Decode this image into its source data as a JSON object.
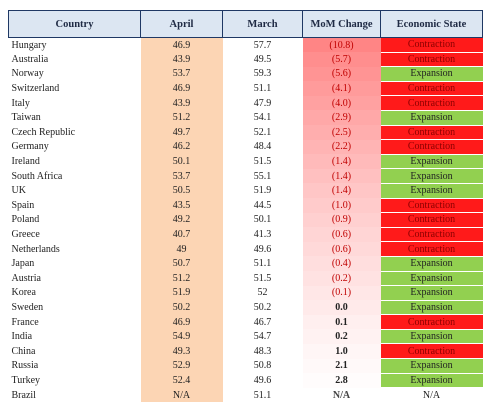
{
  "table": {
    "header": [
      "Country",
      "April",
      "March",
      "MoM Change",
      "Economic State"
    ],
    "rows": [
      [
        "Hungary",
        "46.9",
        "57.7",
        "(10.8)",
        "Contraction"
      ],
      [
        "Australia",
        "43.9",
        "49.5",
        "(5.7)",
        "Contraction"
      ],
      [
        "Norway",
        "53.7",
        "59.3",
        "(5.6)",
        "Expansion"
      ],
      [
        "Switzerland",
        "46.9",
        "51.1",
        "(4.1)",
        "Contraction"
      ],
      [
        "Italy",
        "43.9",
        "47.9",
        "(4.0)",
        "Contraction"
      ],
      [
        "Taiwan",
        "51.2",
        "54.1",
        "(2.9)",
        "Expansion"
      ],
      [
        "Czech Republic",
        "49.7",
        "52.1",
        "(2.5)",
        "Contraction"
      ],
      [
        "Germany",
        "46.2",
        "48.4",
        "(2.2)",
        "Contraction"
      ],
      [
        "Ireland",
        "50.1",
        "51.5",
        "(1.4)",
        "Expansion"
      ],
      [
        "South Africa",
        "53.7",
        "55.1",
        "(1.4)",
        "Expansion"
      ],
      [
        "UK",
        "50.5",
        "51.9",
        "(1.4)",
        "Expansion"
      ],
      [
        "Spain",
        "43.5",
        "44.5",
        "(1.0)",
        "Contraction"
      ],
      [
        "Poland",
        "49.2",
        "50.1",
        "(0.9)",
        "Contraction"
      ],
      [
        "Greece",
        "40.7",
        "41.3",
        "(0.6)",
        "Contraction"
      ],
      [
        "Netherlands",
        "49",
        "49.6",
        "(0.6)",
        "Contraction"
      ],
      [
        "Japan",
        "50.7",
        "51.1",
        "(0.4)",
        "Expansion"
      ],
      [
        "Austria",
        "51.2",
        "51.5",
        "(0.2)",
        "Expansion"
      ],
      [
        "Korea",
        "51.9",
        "52",
        "(0.1)",
        "Expansion"
      ],
      [
        "Sweden",
        "50.2",
        "50.2",
        "0.0",
        "Expansion"
      ],
      [
        "France",
        "46.9",
        "46.7",
        "0.1",
        "Contraction"
      ],
      [
        "India",
        "54.9",
        "54.7",
        "0.2",
        "Expansion"
      ],
      [
        "China",
        "49.3",
        "48.3",
        "1.0",
        "Contraction"
      ],
      [
        "Russia",
        "52.9",
        "50.8",
        "2.1",
        "Expansion"
      ],
      [
        "Turkey",
        "52.4",
        "49.6",
        "2.8",
        "Expansion"
      ],
      [
        "Brazil",
        "N/A",
        "51.1",
        "N/A",
        "N/A"
      ]
    ]
  },
  "state_colors": {
    "Contraction": "#ff1a1a",
    "Expansion": "#92d050"
  }
}
